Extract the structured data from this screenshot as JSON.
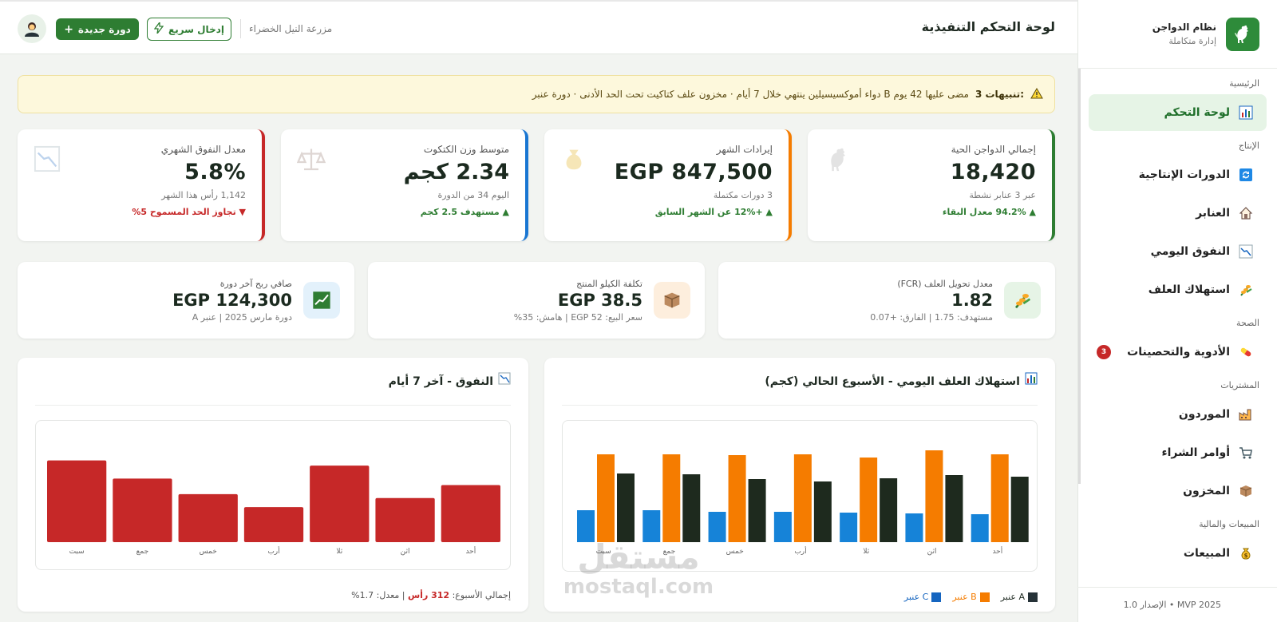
{
  "sidebar": {
    "brand_title": "نظام الدواجن",
    "brand_sub": "إدارة متكاملة",
    "sections": [
      {
        "label": "الرئيسية"
      },
      {
        "label": "الإنتاج"
      },
      {
        "label": "الصحة"
      },
      {
        "label": "المشتريات"
      },
      {
        "label": "المبيعات والمالية"
      }
    ],
    "items": [
      {
        "label": "لوحة التحكم",
        "icon": "bar-chart-icon"
      },
      {
        "label": "الدورات الإنتاجية",
        "icon": "cycle-icon"
      },
      {
        "label": "العنابر",
        "icon": "house-icon"
      },
      {
        "label": "النفوق اليومي",
        "icon": "trend-down-icon"
      },
      {
        "label": "استهلاك العلف",
        "icon": "feed-icon"
      },
      {
        "label": "الأدوية والتحصينات",
        "icon": "pill-icon",
        "badge": "3"
      },
      {
        "label": "الموردون",
        "icon": "factory-icon"
      },
      {
        "label": "أوامر الشراء",
        "icon": "cart-icon"
      },
      {
        "label": "المخزون",
        "icon": "box-icon"
      },
      {
        "label": "المبيعات",
        "icon": "money-bag-icon"
      }
    ],
    "footer": "الإصدار 1.0 • MVP 2025"
  },
  "topbar": {
    "title": "لوحة التحكم التنفيذية",
    "farm": "مزرعة النيل الخضراء",
    "quick_entry": "إدخال سريع",
    "new_cycle": "دورة جديدة"
  },
  "alert": {
    "count_label": "3 تنبيهات:",
    "message": "دواء أموكسيسيلين ينتهي خلال 7 أيام · مخزون علف كتاكيت تحت الحد الأدنى · دورة عنبر B مضى عليها 42 يوم"
  },
  "stats": [
    {
      "label": "إجمالي الدواجن الحية",
      "value": "18,420",
      "sub": "عبر 3 عنابر نشطة",
      "trend": "▲ 94.2% معدل البقاء",
      "color": "#2e7d32",
      "trend_color": "#2e7d32"
    },
    {
      "label": "إيرادات الشهر",
      "value": "EGP 847,500",
      "sub": "3 دورات مكتملة",
      "trend": "▲ +12% عن الشهر السابق",
      "color": "#f57c00",
      "trend_color": "#2e7d32"
    },
    {
      "label": "متوسط وزن الكتكوت",
      "value": "2.34 كجم",
      "sub": "اليوم 34 من الدورة",
      "trend": "▲ مستهدف 2.5 كجم",
      "color": "#1976d2",
      "trend_color": "#2e7d32"
    },
    {
      "label": "معدل النفوق الشهري",
      "value": "5.8%",
      "sub": "1,142 رأس هذا الشهر",
      "trend": "▼ تجاوز الحد المسموح 5%",
      "color": "#c62828",
      "trend_color": "#c62828"
    }
  ],
  "metrics": [
    {
      "label": "معدل تحويل العلف (FCR)",
      "value": "1.82",
      "sub": "مستهدف: 1.75 | الفارق: +0.07",
      "bg": "#e6f4e6"
    },
    {
      "label": "تكلفة الكيلو المنتج",
      "value": "EGP 38.5",
      "sub": "سعر البيع: 52 EGP | هامش: 35%",
      "bg": "#fdeedd"
    },
    {
      "label": "صافي ربح آخر دورة",
      "value": "EGP 124,300",
      "sub": "دورة مارس 2025 | عنبر A",
      "bg": "#e3f1fb"
    }
  ],
  "feed_chart": {
    "title": "استهلاك العلف اليومي - الأسبوع الحالي (كجم)",
    "legend": [
      {
        "name": "عنبر A",
        "color": "#263238"
      },
      {
        "name": "عنبر B",
        "color": "#f57c00"
      },
      {
        "name": "عنبر C",
        "color": "#1565c0"
      }
    ]
  },
  "mortality_chart": {
    "title": "النفوق - آخر 7 أيام",
    "footer_prefix": "إجمالي الأسبوع:",
    "footer_total": "312 رأس",
    "footer_avg": "| معدل: 1.7%"
  },
  "chart_data": [
    {
      "type": "bar",
      "title": "استهلاك العلف اليومي - الأسبوع الحالي (كجم)",
      "categories": [
        "أحد",
        "اثن",
        "ثلا",
        "أرب",
        "خمس",
        "جمع",
        "سبت"
      ],
      "series": [
        {
          "name": "عنبر A",
          "color": "#1e2a1e",
          "values": [
            82,
            84,
            80,
            76,
            79,
            85,
            86
          ]
        },
        {
          "name": "عنبر B",
          "color": "#f57c00",
          "values": [
            110,
            115,
            106,
            110,
            109,
            110,
            110
          ]
        },
        {
          "name": "عنبر C",
          "color": "#1683d8",
          "values": [
            35,
            36,
            37,
            38,
            38,
            40,
            40
          ]
        }
      ],
      "ylim": [
        0,
        130
      ]
    },
    {
      "type": "bar",
      "title": "النفوق - آخر 7 أيام",
      "categories": [
        "أحد",
        "اثن",
        "ثلا",
        "أرب",
        "خمس",
        "جمع",
        "سبت"
      ],
      "values": [
        44,
        34,
        59,
        27,
        37,
        49,
        63
      ],
      "ylim": [
        0,
        80
      ]
    }
  ],
  "watermark": {
    "line1": "مستقل",
    "line2": "mostaql.com"
  }
}
